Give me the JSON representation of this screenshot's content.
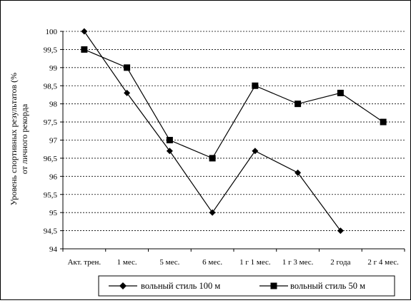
{
  "chart_data": {
    "type": "line",
    "ylabel_line1": "Уровень спортивных результатов (%",
    "ylabel_line2": "от личного рекорда",
    "categories": [
      "Акт. трен.",
      "1 мес.",
      "5 мес.",
      "6 мес.",
      "1 г 1 мес.",
      "1 г 3 мес.",
      "2 года",
      "2 г 4 мес."
    ],
    "y_ticks": [
      "94",
      "94,5",
      "95",
      "95,5",
      "96",
      "96,5",
      "97",
      "97,5",
      "98",
      "98,5",
      "99",
      "99,5",
      "100"
    ],
    "ylim": [
      94,
      100
    ],
    "grid": "horizontal dashed",
    "legend_position": "bottom-right",
    "series": [
      {
        "name": "вольный стиль 100 м",
        "marker": "diamond",
        "color": "#000000",
        "values": [
          100,
          98.3,
          96.7,
          95,
          96.7,
          96.1,
          94.5,
          null
        ]
      },
      {
        "name": "вольный стиль 50 м",
        "marker": "square",
        "color": "#000000",
        "values": [
          99.5,
          99,
          97,
          96.5,
          98.5,
          98,
          98.3,
          97.5
        ]
      }
    ]
  }
}
